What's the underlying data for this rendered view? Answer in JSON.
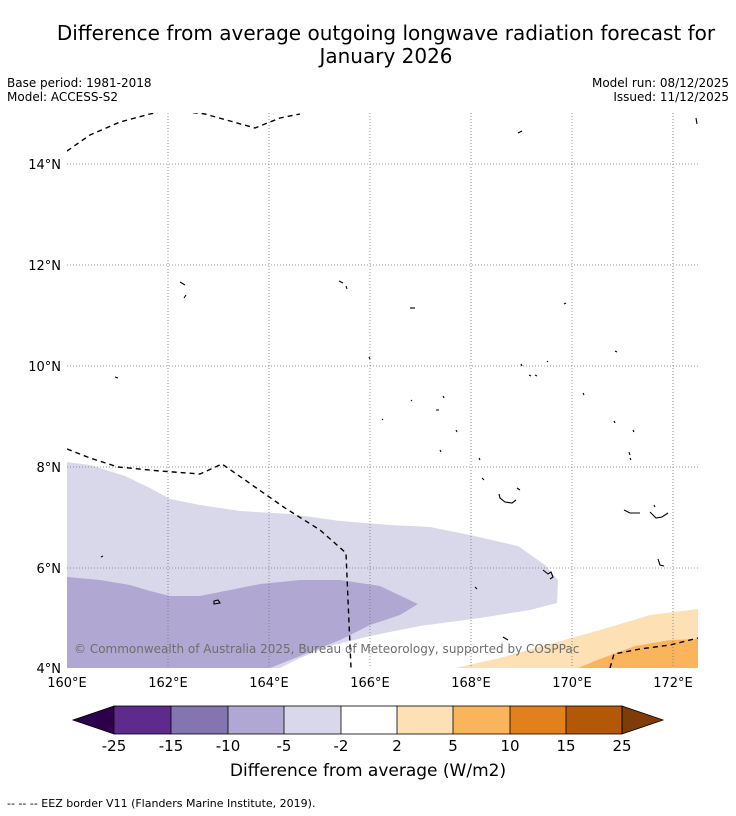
{
  "title_line1": "Difference from average outgoing longwave radiation forecast for",
  "title_line2": "January 2026",
  "base_period": "Base period: 1981-2018",
  "model": "Model: ACCESS-S2",
  "model_run": "Model run: 08/12/2025",
  "issued": "Issued: 11/12/2025",
  "map": {
    "lon_min": 160,
    "lon_max": 172.5,
    "lat_min": 4,
    "lat_max": 15,
    "lat_ticks": [
      "4°N",
      "6°N",
      "8°N",
      "10°N",
      "12°N",
      "14°N"
    ],
    "lon_ticks": [
      "160°E",
      "162°E",
      "164°E",
      "166°E",
      "168°E",
      "170°E",
      "172°E"
    ],
    "copyright": "© Commonwealth of Australia 2025, Bureau of Meteorology, supported by COSPPac"
  },
  "colorbar": {
    "ticks": [
      "-25",
      "-15",
      "-10",
      "-5",
      "-2",
      "2",
      "5",
      "10",
      "15",
      "25"
    ],
    "colors": [
      "#5c2b8b",
      "#8474b0",
      "#b0a8d2",
      "#d8d8ea",
      "#ffffff",
      "#fde0b4",
      "#f9b45c",
      "#e2811c",
      "#b35806"
    ],
    "under_color": "#2d004b",
    "over_color": "#7f3b08",
    "title": "Difference from average (W/m2)"
  },
  "footnote": "--  --  -- EEZ border V11 (Flanders Marine Institute, 2019)."
}
